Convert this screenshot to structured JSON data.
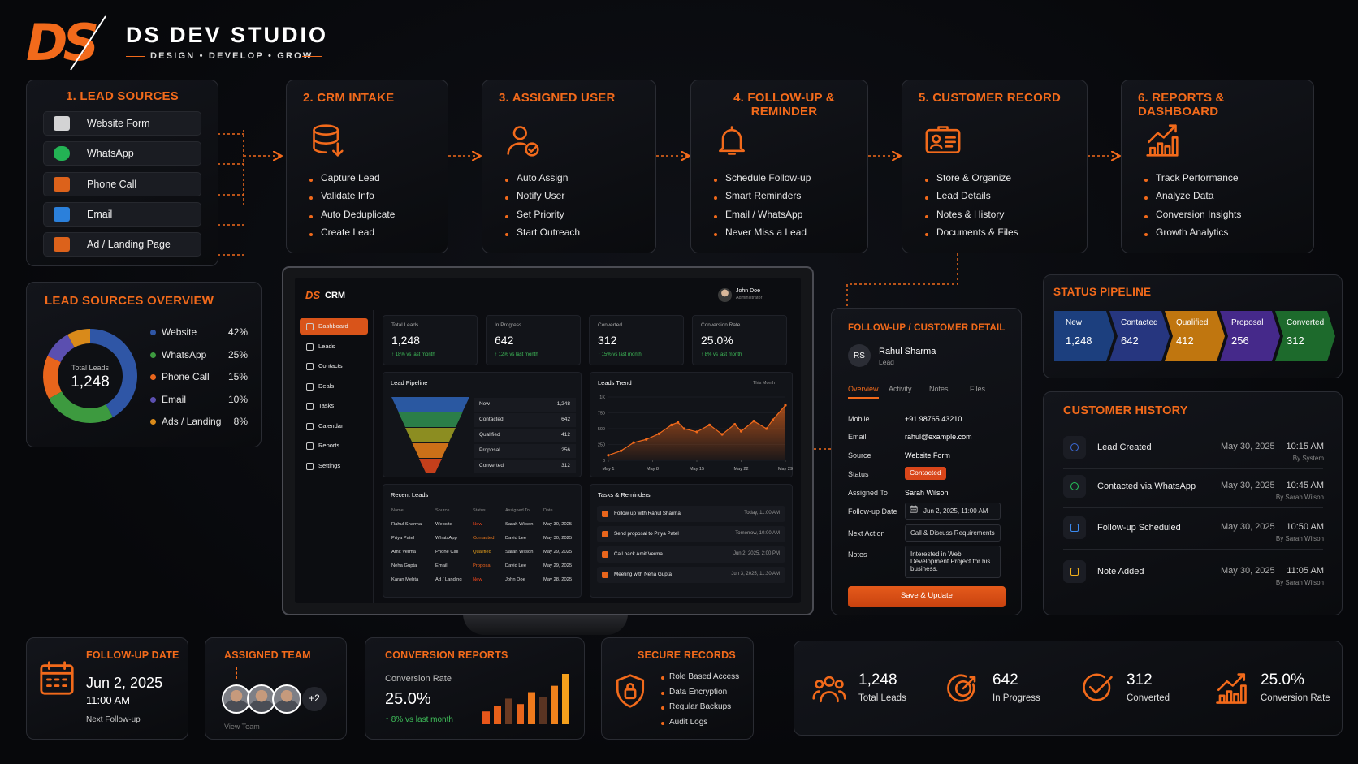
{
  "brand": {
    "logo": "DS",
    "name": "DS DEV STUDIO",
    "tagline": "DESIGN • DEVELOP • GROW"
  },
  "steps": [
    {
      "title": "1. LEAD SOURCES",
      "items": [
        "Website Form",
        "WhatsApp",
        "Phone Call",
        "Email",
        "Ad / Landing Page"
      ]
    },
    {
      "title": "2.  CRM INTAKE",
      "items": [
        "Capture Lead",
        "Validate Info",
        "Auto Deduplicate",
        "Create Lead"
      ]
    },
    {
      "title": "3.  ASSIGNED USER",
      "items": [
        "Auto Assign",
        "Notify User",
        "Set Priority",
        "Start Outreach"
      ]
    },
    {
      "title": "4.  FOLLOW-UP & REMINDER",
      "items": [
        "Schedule Follow-up",
        "Smart Reminders",
        "Email / WhatsApp",
        "Never Miss a Lead"
      ]
    },
    {
      "title": "5.  CUSTOMER RECORD",
      "items": [
        "Store & Organize",
        "Lead Details",
        "Notes & History",
        "Documents & Files"
      ]
    },
    {
      "title": "6.  REPORTS & DASHBOARD",
      "items": [
        "Track Performance",
        "Analyze Data",
        "Conversion Insights",
        "Growth Analytics"
      ]
    }
  ],
  "lead_sources_overview": {
    "title": "LEAD SOURCES OVERVIEW",
    "center_label": "Total Leads",
    "center_value": "1,248",
    "chart": {
      "type": "pie",
      "categories": [
        "Website",
        "WhatsApp",
        "Phone Call",
        "Email",
        "Ads / Landing"
      ],
      "values": [
        42,
        25,
        15,
        10,
        8
      ],
      "value_labels": [
        "42%",
        "25%",
        "15%",
        "10%",
        "8%"
      ],
      "colors": [
        "#2f56a6",
        "#3d9a3f",
        "#e8651c",
        "#5b4fb0",
        "#d98a1a"
      ]
    }
  },
  "crm_screen": {
    "logo": "DS",
    "app": "CRM",
    "user": "John Doe",
    "role": "Administrator",
    "menu": [
      "Dashboard",
      "Leads",
      "Contacts",
      "Deals",
      "Tasks",
      "Calendar",
      "Reports",
      "Settings"
    ],
    "kpis": [
      {
        "label": "Total Leads",
        "value": "1,248",
        "change": "↑ 18% vs last month"
      },
      {
        "label": "In Progress",
        "value": "642",
        "change": "↑ 12% vs last month"
      },
      {
        "label": "Converted",
        "value": "312",
        "change": "↑ 15% vs last month"
      },
      {
        "label": "Conversion Rate",
        "value": "25.0%",
        "change": "↑ 8% vs last month"
      }
    ],
    "pipeline": {
      "title": "Lead Pipeline",
      "type": "funnel",
      "categories": [
        "New",
        "Contacted",
        "Qualified",
        "Proposal",
        "Converted"
      ],
      "values": [
        1248,
        642,
        412,
        256,
        312
      ],
      "value_labels": [
        "1,248",
        "642",
        "412",
        "256",
        "312"
      ],
      "colors": [
        "#2d5fb0",
        "#2f8a4e",
        "#9a9a22",
        "#e07a18",
        "#d8441c"
      ]
    },
    "trend": {
      "title": "Leads Trend",
      "period": "This Month",
      "type": "area",
      "color": "#f26a1b",
      "x": [
        1,
        3,
        5,
        7,
        9,
        11,
        12,
        13,
        15,
        17,
        19,
        21,
        22,
        24,
        26,
        27,
        29
      ],
      "values": [
        80,
        150,
        280,
        330,
        420,
        560,
        600,
        500,
        450,
        560,
        410,
        570,
        460,
        620,
        500,
        640,
        870
      ],
      "xlim": [
        1,
        29
      ],
      "xticks": [
        {
          "value": 1,
          "label": "May 1"
        },
        {
          "value": 8,
          "label": "May 8"
        },
        {
          "value": 15,
          "label": "May 15"
        },
        {
          "value": 22,
          "label": "May 22"
        },
        {
          "value": 29,
          "label": "May 29"
        }
      ],
      "ylim": [
        0,
        1000
      ],
      "yticks": [
        0,
        250,
        500,
        750,
        {
          "value": 1000,
          "label": "1K"
        }
      ]
    },
    "recent_leads": {
      "title": "Recent Leads",
      "columns": [
        "Name",
        "Source",
        "Status",
        "Assigned To",
        "Date"
      ],
      "rows": [
        [
          "Rahul Sharma",
          "Website",
          "New",
          "Sarah Wilson",
          "May 30, 2025"
        ],
        [
          "Priya Patel",
          "WhatsApp",
          "Contacted",
          "David Lee",
          "May 30, 2025"
        ],
        [
          "Amit Verma",
          "Phone Call",
          "Qualified",
          "Sarah Wilson",
          "May 29, 2025"
        ],
        [
          "Neha Gupta",
          "Email",
          "Proposal",
          "David Lee",
          "May 29, 2025"
        ],
        [
          "Karan Mehta",
          "Ad / Landing",
          "New",
          "John Doe",
          "May 28, 2025"
        ]
      ]
    },
    "tasks": {
      "title": "Tasks & Reminders",
      "items": [
        {
          "text": "Follow up with Rahul Sharma",
          "time": "Today, 11:00 AM"
        },
        {
          "text": "Send proposal to Priya Patel",
          "time": "Tomorrow, 10:00 AM"
        },
        {
          "text": "Call back Amit Verma",
          "time": "Jun 2, 2025, 2:00 PM"
        },
        {
          "text": "Meeting with Neha Gupta",
          "time": "Jun 3, 2025, 11:30 AM"
        }
      ]
    }
  },
  "detail": {
    "title": "FOLLOW-UP / CUSTOMER DETAIL",
    "initials": "RS",
    "name": "Rahul Sharma",
    "role": "Lead",
    "tabs": [
      "Overview",
      "Activity",
      "Notes",
      "Files"
    ],
    "fields": [
      {
        "label": "Mobile",
        "value": "+91 98765 43210"
      },
      {
        "label": "Email",
        "value": "rahul@example.com"
      },
      {
        "label": "Source",
        "value": "Website Form"
      },
      {
        "label": "Status",
        "value": "Contacted"
      },
      {
        "label": "Assigned To",
        "value": "Sarah Wilson"
      },
      {
        "label": "Follow-up Date",
        "value": "Jun 2, 2025, 11:00 AM"
      },
      {
        "label": "Next Action",
        "value": "Call & Discuss Requirements"
      },
      {
        "label": "Notes",
        "value": "Interested in Web Development Project for his business."
      }
    ],
    "button": "Save & Update"
  },
  "status_pipeline": {
    "title": "STATUS PIPELINE",
    "stages": [
      {
        "name": "New",
        "value": "1,248",
        "color": "#1c3f7e"
      },
      {
        "name": "Contacted",
        "value": "642",
        "color": "#26367f"
      },
      {
        "name": "Qualified",
        "value": "412",
        "color": "#c0760f"
      },
      {
        "name": "Proposal",
        "value": "256",
        "color": "#45298a"
      },
      {
        "name": "Converted",
        "value": "312",
        "color": "#1d6a2c"
      }
    ]
  },
  "customer_history": {
    "title": "CUSTOMER HISTORY",
    "events": [
      {
        "event": "Lead Created",
        "date": "May 30, 2025",
        "time": "10:15 AM",
        "by": "By System"
      },
      {
        "event": "Contacted via WhatsApp",
        "date": "May 30, 2025",
        "time": "10:45 AM",
        "by": "By Sarah Wilson"
      },
      {
        "event": "Follow-up Scheduled",
        "date": "May 30, 2025",
        "time": "10:50 AM",
        "by": "By Sarah Wilson"
      },
      {
        "event": "Note Added",
        "date": "May 30, 2025",
        "time": "11:05 AM",
        "by": "By Sarah Wilson"
      }
    ]
  },
  "followup_date": {
    "title": "FOLLOW-UP DATE",
    "date": "Jun 2, 2025",
    "time": "11:00 AM",
    "caption": "Next Follow-up"
  },
  "assigned_team": {
    "title": "ASSIGNED TEAM",
    "more": "+2",
    "link": "View Team"
  },
  "conversion_reports": {
    "title": "CONVERSION REPORTS",
    "label": "Conversion Rate",
    "value": "25.0%",
    "change": "↑ 8% vs last month",
    "chart": {
      "type": "bar",
      "values": [
        14,
        20,
        28,
        22,
        35,
        30,
        42,
        55
      ],
      "colors": [
        "#e8561a",
        "#e8601a",
        "#6b3a22",
        "#e8651c",
        "#ef7a1c",
        "#5a3422",
        "#f0821c",
        "#f5a01c"
      ]
    }
  },
  "secure_records": {
    "title": "SECURE RECORDS",
    "items": [
      "Role Based Access",
      "Data Encryption",
      "Regular Backups",
      "Audit Logs"
    ]
  },
  "summary": [
    {
      "value": "1,248",
      "label": "Total Leads"
    },
    {
      "value": "642",
      "label": "In Progress"
    },
    {
      "value": "312",
      "label": "Converted"
    },
    {
      "value": "25.0%",
      "label": "Conversion Rate"
    }
  ]
}
